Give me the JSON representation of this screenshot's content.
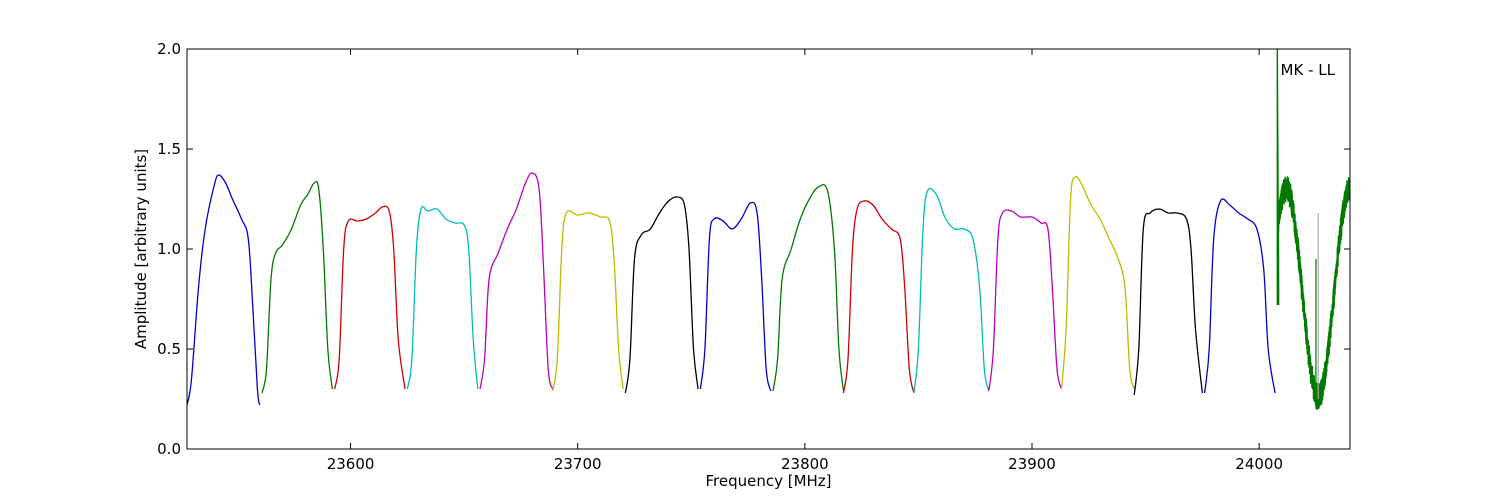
{
  "chart_data": {
    "type": "line",
    "title": "",
    "xlabel": "Frequency [MHz]",
    "ylabel": "Amplitude [arbitrary units]",
    "xlim": [
      23528,
      24040
    ],
    "ylim": [
      0.0,
      2.0
    ],
    "xticks": [
      23600,
      23700,
      23800,
      23900,
      24000
    ],
    "xtick_labels": [
      "23600",
      "23700",
      "23800",
      "23900",
      "24000"
    ],
    "yticks": [
      0.0,
      0.5,
      1.0,
      1.5,
      2.0
    ],
    "ytick_labels": [
      "0.0",
      "0.5",
      "1.0",
      "1.5",
      "2.0"
    ],
    "grid": false,
    "annotation": "MK - LL",
    "series": [
      {
        "color": "#0000cc",
        "points": [
          [
            23528,
            0.22
          ],
          [
            23530,
            0.35
          ],
          [
            23533,
            0.8
          ],
          [
            23536,
            1.1
          ],
          [
            23540,
            1.32
          ],
          [
            23542,
            1.37
          ],
          [
            23545,
            1.33
          ],
          [
            23548,
            1.25
          ],
          [
            23552,
            1.15
          ],
          [
            23555,
            1.05
          ],
          [
            23557,
            0.7
          ],
          [
            23559,
            0.3
          ],
          [
            23560,
            0.22
          ]
        ]
      },
      {
        "color": "#007a00",
        "points": [
          [
            23561,
            0.28
          ],
          [
            23563,
            0.4
          ],
          [
            23565,
            0.85
          ],
          [
            23567,
            0.98
          ],
          [
            23570,
            1.02
          ],
          [
            23574,
            1.1
          ],
          [
            23578,
            1.22
          ],
          [
            23581,
            1.27
          ],
          [
            23584,
            1.33
          ],
          [
            23586,
            1.3
          ],
          [
            23588,
            1.0
          ],
          [
            23590,
            0.5
          ],
          [
            23592,
            0.3
          ]
        ]
      },
      {
        "color": "#cc0000",
        "points": [
          [
            23593,
            0.3
          ],
          [
            23595,
            0.45
          ],
          [
            23597,
            1.0
          ],
          [
            23599,
            1.14
          ],
          [
            23603,
            1.14
          ],
          [
            23607,
            1.15
          ],
          [
            23611,
            1.18
          ],
          [
            23614,
            1.21
          ],
          [
            23617,
            1.19
          ],
          [
            23619,
            1.0
          ],
          [
            23621,
            0.55
          ],
          [
            23624,
            0.3
          ]
        ]
      },
      {
        "color": "#00bbbb",
        "points": [
          [
            23625,
            0.3
          ],
          [
            23627,
            0.45
          ],
          [
            23629,
            1.0
          ],
          [
            23631,
            1.2
          ],
          [
            23634,
            1.19
          ],
          [
            23638,
            1.2
          ],
          [
            23642,
            1.15
          ],
          [
            23646,
            1.13
          ],
          [
            23650,
            1.12
          ],
          [
            23652,
            1.0
          ],
          [
            23654,
            0.55
          ],
          [
            23656,
            0.3
          ]
        ]
      },
      {
        "color": "#bb00bb",
        "points": [
          [
            23657,
            0.3
          ],
          [
            23659,
            0.45
          ],
          [
            23661,
            0.85
          ],
          [
            23665,
            0.98
          ],
          [
            23669,
            1.1
          ],
          [
            23673,
            1.2
          ],
          [
            23677,
            1.33
          ],
          [
            23680,
            1.38
          ],
          [
            23683,
            1.3
          ],
          [
            23685,
            0.9
          ],
          [
            23687,
            0.4
          ],
          [
            23689,
            0.3
          ]
        ]
      },
      {
        "color": "#bbbb00",
        "points": [
          [
            23689,
            0.29
          ],
          [
            23691,
            0.45
          ],
          [
            23693,
            1.0
          ],
          [
            23695,
            1.18
          ],
          [
            23700,
            1.17
          ],
          [
            23705,
            1.18
          ],
          [
            23710,
            1.16
          ],
          [
            23714,
            1.14
          ],
          [
            23716,
            0.95
          ],
          [
            23718,
            0.5
          ],
          [
            23720,
            0.3
          ]
        ]
      },
      {
        "color": "#000000",
        "points": [
          [
            23721,
            0.28
          ],
          [
            23723,
            0.45
          ],
          [
            23725,
            0.95
          ],
          [
            23728,
            1.07
          ],
          [
            23732,
            1.1
          ],
          [
            23736,
            1.18
          ],
          [
            23740,
            1.24
          ],
          [
            23744,
            1.26
          ],
          [
            23747,
            1.22
          ],
          [
            23749,
            1.0
          ],
          [
            23751,
            0.5
          ],
          [
            23753,
            0.3
          ]
        ]
      },
      {
        "color": "#0000cc",
        "points": [
          [
            23754,
            0.3
          ],
          [
            23756,
            0.5
          ],
          [
            23758,
            1.05
          ],
          [
            23760,
            1.15
          ],
          [
            23764,
            1.14
          ],
          [
            23768,
            1.1
          ],
          [
            23772,
            1.15
          ],
          [
            23776,
            1.23
          ],
          [
            23779,
            1.18
          ],
          [
            23781,
            0.85
          ],
          [
            23783,
            0.4
          ],
          [
            23785,
            0.29
          ]
        ]
      },
      {
        "color": "#007a00",
        "points": [
          [
            23786,
            0.29
          ],
          [
            23788,
            0.45
          ],
          [
            23790,
            0.85
          ],
          [
            23794,
            1.0
          ],
          [
            23798,
            1.15
          ],
          [
            23802,
            1.25
          ],
          [
            23806,
            1.31
          ],
          [
            23810,
            1.29
          ],
          [
            23813,
            1.0
          ],
          [
            23815,
            0.5
          ],
          [
            23817,
            0.29
          ]
        ]
      },
      {
        "color": "#cc0000",
        "points": [
          [
            23817,
            0.28
          ],
          [
            23819,
            0.45
          ],
          [
            23821,
            1.0
          ],
          [
            23823,
            1.2
          ],
          [
            23826,
            1.24
          ],
          [
            23830,
            1.22
          ],
          [
            23834,
            1.15
          ],
          [
            23838,
            1.1
          ],
          [
            23842,
            1.05
          ],
          [
            23844,
            0.8
          ],
          [
            23846,
            0.4
          ],
          [
            23848,
            0.28
          ]
        ]
      },
      {
        "color": "#00bbbb",
        "points": [
          [
            23848,
            0.28
          ],
          [
            23850,
            0.5
          ],
          [
            23852,
            1.1
          ],
          [
            23854,
            1.29
          ],
          [
            23858,
            1.27
          ],
          [
            23862,
            1.15
          ],
          [
            23866,
            1.1
          ],
          [
            23870,
            1.1
          ],
          [
            23874,
            1.05
          ],
          [
            23877,
            0.8
          ],
          [
            23879,
            0.4
          ],
          [
            23881,
            0.29
          ]
        ]
      },
      {
        "color": "#bb00bb",
        "points": [
          [
            23881,
            0.29
          ],
          [
            23883,
            0.5
          ],
          [
            23885,
            1.05
          ],
          [
            23887,
            1.18
          ],
          [
            23891,
            1.19
          ],
          [
            23895,
            1.16
          ],
          [
            23900,
            1.16
          ],
          [
            23904,
            1.13
          ],
          [
            23907,
            1.1
          ],
          [
            23909,
            0.8
          ],
          [
            23911,
            0.4
          ],
          [
            23913,
            0.3
          ]
        ]
      },
      {
        "color": "#bbbb00",
        "points": [
          [
            23913,
            0.3
          ],
          [
            23915,
            0.6
          ],
          [
            23917,
            1.25
          ],
          [
            23919,
            1.36
          ],
          [
            23922,
            1.32
          ],
          [
            23926,
            1.22
          ],
          [
            23930,
            1.15
          ],
          [
            23934,
            1.05
          ],
          [
            23938,
            0.95
          ],
          [
            23941,
            0.8
          ],
          [
            23943,
            0.4
          ],
          [
            23945,
            0.3
          ]
        ]
      },
      {
        "color": "#000000",
        "points": [
          [
            23945,
            0.27
          ],
          [
            23947,
            0.5
          ],
          [
            23949,
            1.1
          ],
          [
            23952,
            1.18
          ],
          [
            23956,
            1.2
          ],
          [
            23960,
            1.18
          ],
          [
            23964,
            1.18
          ],
          [
            23968,
            1.15
          ],
          [
            23970,
            1.0
          ],
          [
            23972,
            0.6
          ],
          [
            23975,
            0.28
          ]
        ]
      },
      {
        "color": "#0000cc",
        "points": [
          [
            23976,
            0.28
          ],
          [
            23978,
            0.5
          ],
          [
            23980,
            1.05
          ],
          [
            23983,
            1.24
          ],
          [
            23987,
            1.22
          ],
          [
            23991,
            1.18
          ],
          [
            23995,
            1.15
          ],
          [
            23999,
            1.1
          ],
          [
            24002,
            0.9
          ],
          [
            24004,
            0.5
          ],
          [
            24007,
            0.28
          ]
        ]
      }
    ],
    "special_series": {
      "color": "#007a00",
      "spike": [
        [
          24008,
          0.72
        ],
        [
          24008,
          2.0
        ],
        [
          24008.6,
          0.72
        ]
      ],
      "oscillation": {
        "x_start": 24008.5,
        "x_end": 24040,
        "center": 0.78,
        "amplitude": 0.52,
        "period": 28,
        "phase_x": 24012,
        "noise": 0.05
      },
      "artifact_lines": [
        {
          "x": 24026,
          "y0": 0.25,
          "y1": 1.18,
          "color": "#aaaaaa"
        },
        {
          "x": 24025,
          "y0": 0.3,
          "y1": 0.95,
          "color": "#007a00"
        }
      ]
    }
  }
}
